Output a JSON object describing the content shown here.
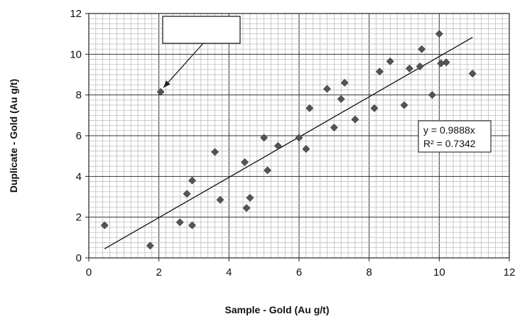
{
  "chart_data": {
    "type": "scatter",
    "title": "",
    "xlabel": "Sample - Gold (Au g/t)",
    "ylabel": "Duplicate - Gold (Au g/t)",
    "xlim": [
      0,
      12
    ],
    "ylim": [
      0,
      12
    ],
    "x_ticks": [
      "0",
      "2",
      "4",
      "6",
      "8",
      "10",
      "12"
    ],
    "y_ticks": [
      "0",
      "2",
      "4",
      "6",
      "8",
      "10",
      "12"
    ],
    "grid": true,
    "series": [
      {
        "marker": "diamond",
        "color": "#555555",
        "points": [
          [
            0.45,
            1.6
          ],
          [
            1.75,
            0.6
          ],
          [
            2.05,
            8.15
          ],
          [
            2.6,
            1.75
          ],
          [
            2.8,
            3.15
          ],
          [
            2.95,
            3.8
          ],
          [
            2.95,
            1.6
          ],
          [
            3.6,
            5.2
          ],
          [
            3.75,
            2.85
          ],
          [
            4.45,
            4.7
          ],
          [
            4.5,
            2.45
          ],
          [
            4.6,
            2.95
          ],
          [
            5.0,
            5.9
          ],
          [
            5.1,
            4.3
          ],
          [
            5.4,
            5.5
          ],
          [
            6.0,
            5.9
          ],
          [
            6.2,
            5.35
          ],
          [
            6.3,
            7.35
          ],
          [
            6.8,
            8.3
          ],
          [
            7.0,
            6.4
          ],
          [
            7.2,
            7.8
          ],
          [
            7.3,
            8.6
          ],
          [
            7.6,
            6.8
          ],
          [
            8.15,
            7.35
          ],
          [
            8.3,
            9.15
          ],
          [
            8.6,
            9.65
          ],
          [
            9.0,
            7.5
          ],
          [
            9.15,
            9.3
          ],
          [
            9.45,
            9.4
          ],
          [
            9.5,
            10.25
          ],
          [
            9.8,
            8.0
          ],
          [
            10.0,
            11.0
          ],
          [
            10.05,
            9.55
          ],
          [
            10.2,
            9.6
          ],
          [
            10.95,
            9.05
          ]
        ]
      }
    ],
    "trendline": {
      "slope": 0.9888,
      "x_range": [
        0.45,
        10.95
      ],
      "color": "#111111"
    },
    "equation": {
      "line1": "y = 0.9888x",
      "line2": "R² = 0.7342"
    },
    "callout": {
      "text": "",
      "target": [
        2.05,
        8.15
      ]
    }
  }
}
